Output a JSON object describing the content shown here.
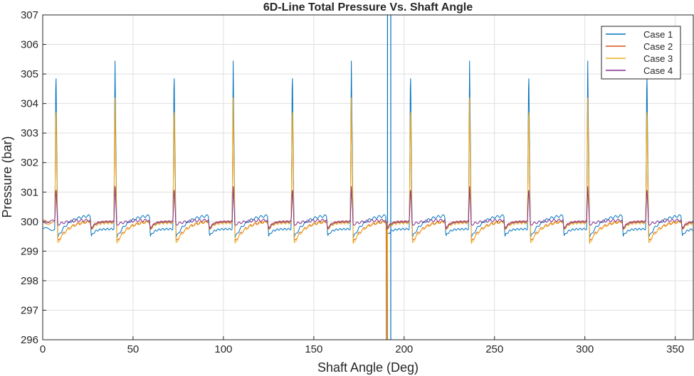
{
  "chart_data": {
    "type": "line",
    "title": "6D-Line Total Pressure Vs. Shaft Angle",
    "xlabel": "Shaft Angle (Deg)",
    "ylabel": "Pressure (bar)",
    "xlim": [
      0,
      360
    ],
    "ylim": [
      296,
      307
    ],
    "x_ticks": [
      0,
      50,
      100,
      150,
      200,
      250,
      300,
      350
    ],
    "y_ticks": [
      296,
      297,
      298,
      299,
      300,
      301,
      302,
      303,
      304,
      305,
      306,
      307
    ],
    "grid": true,
    "legend_position": "top-right",
    "spike_angles": [
      6.7,
      39.4,
      72.1,
      104.8,
      137.5,
      170.2,
      202.9,
      235.6,
      268.3,
      301.0,
      333.7
    ],
    "series": [
      {
        "name": "Case 1",
        "color": "#0072BD",
        "baseline": 299.75,
        "spike_peak": 305.45,
        "post_spike_min": 299.45,
        "recovery_peak": 300.2,
        "vertical_lines_at": [
          190.8,
          192.6
        ]
      },
      {
        "name": "Case 2",
        "color": "#D95319",
        "baseline": 300.0,
        "spike_peak": 304.2,
        "post_spike_min": 299.3,
        "recovery_peak": 300.0,
        "drop_to": 296,
        "drop_at": 190.2
      },
      {
        "name": "Case 3",
        "color": "#EDB120",
        "baseline": 299.95,
        "spike_peak": 304.2,
        "post_spike_min": 299.25,
        "recovery_peak": 300.0,
        "drop_to": 296,
        "drop_at": 190.6
      },
      {
        "name": "Case 4",
        "color": "#7E2F8E",
        "baseline": 300.0,
        "spike_peak": 301.2,
        "post_spike_min": 299.9,
        "recovery_peak": 300.05
      }
    ]
  }
}
